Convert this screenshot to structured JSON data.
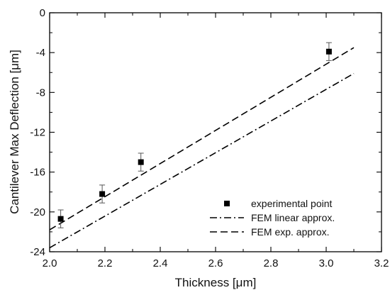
{
  "chart_data": {
    "type": "scatter",
    "xlabel": "Thickness [μm]",
    "ylabel": "Cantilever Max Deflection [μm]",
    "xlim": [
      2.0,
      3.2
    ],
    "ylim": [
      -24,
      0
    ],
    "x_ticks": [
      "2.0",
      "2.2",
      "2.4",
      "2.6",
      "2.8",
      "3.0",
      "3.2"
    ],
    "y_ticks": [
      "0",
      "-4",
      "-8",
      "-12",
      "-16",
      "-20",
      "-24"
    ],
    "grid": false,
    "legend_position": "bottom-right",
    "series": [
      {
        "name": "experimental point",
        "kind": "points",
        "marker": "square",
        "color": "#000000",
        "x": [
          2.04,
          2.19,
          2.33,
          3.01
        ],
        "y": [
          -20.7,
          -18.2,
          -15.0,
          -3.9
        ],
        "yerr": [
          0.9,
          0.9,
          0.9,
          0.9
        ]
      },
      {
        "name": "FEM linear approx.",
        "kind": "line",
        "style": "dash-dot",
        "color": "#000000",
        "x": [
          2.0,
          3.1
        ],
        "y": [
          -23.6,
          -6.1
        ]
      },
      {
        "name": "FEM exp. approx.",
        "kind": "line",
        "style": "dashed",
        "color": "#000000",
        "x": [
          2.0,
          3.1
        ],
        "y": [
          -21.8,
          -3.5
        ]
      }
    ]
  }
}
